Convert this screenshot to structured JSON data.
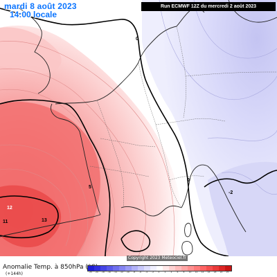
{
  "header": {
    "date_label": "mardi 8 août 2023",
    "time_label": "14:00 locale",
    "run_info": "Run ECMWF 12Z du mercredi 2 août 2023"
  },
  "map": {
    "watermark": "Copyright 2023 Meteociel.fr",
    "contour_labels": [
      "12",
      "13",
      "11",
      "5",
      "0",
      "0",
      "-2"
    ]
  },
  "legend": {
    "title": "Anomalie Temp. à 850hPa (°C)",
    "lead": "(+144h)",
    "scale_values": [
      "-25",
      "-20",
      "-18",
      "-16",
      "-14",
      "-12",
      "-10",
      "-8",
      "-6",
      "-4",
      "-2",
      "0",
      "2",
      "4",
      "6",
      "8",
      "10",
      "12",
      "14",
      "16",
      "18",
      "20",
      "25"
    ],
    "scale_colors": [
      "#1f1fd6",
      "#3030e0",
      "#4545e6",
      "#5a5aea",
      "#6f6fee",
      "#8484f2",
      "#9b9bf5",
      "#b2b2f8",
      "#c9c9fb",
      "#dedefd",
      "#f0f0ff",
      "#ffffff",
      "#ffe8e8",
      "#ffd2d2",
      "#ffbcbc",
      "#ffa6a6",
      "#ff9090",
      "#ff7a7a",
      "#ff6464",
      "#f54e4e",
      "#ea3a3a",
      "#dd2626",
      "#c81414"
    ]
  },
  "colors": {
    "title_blue": "#0a74ff",
    "warm_strong": "#f06060",
    "cool_light": "#dcdcfa"
  }
}
